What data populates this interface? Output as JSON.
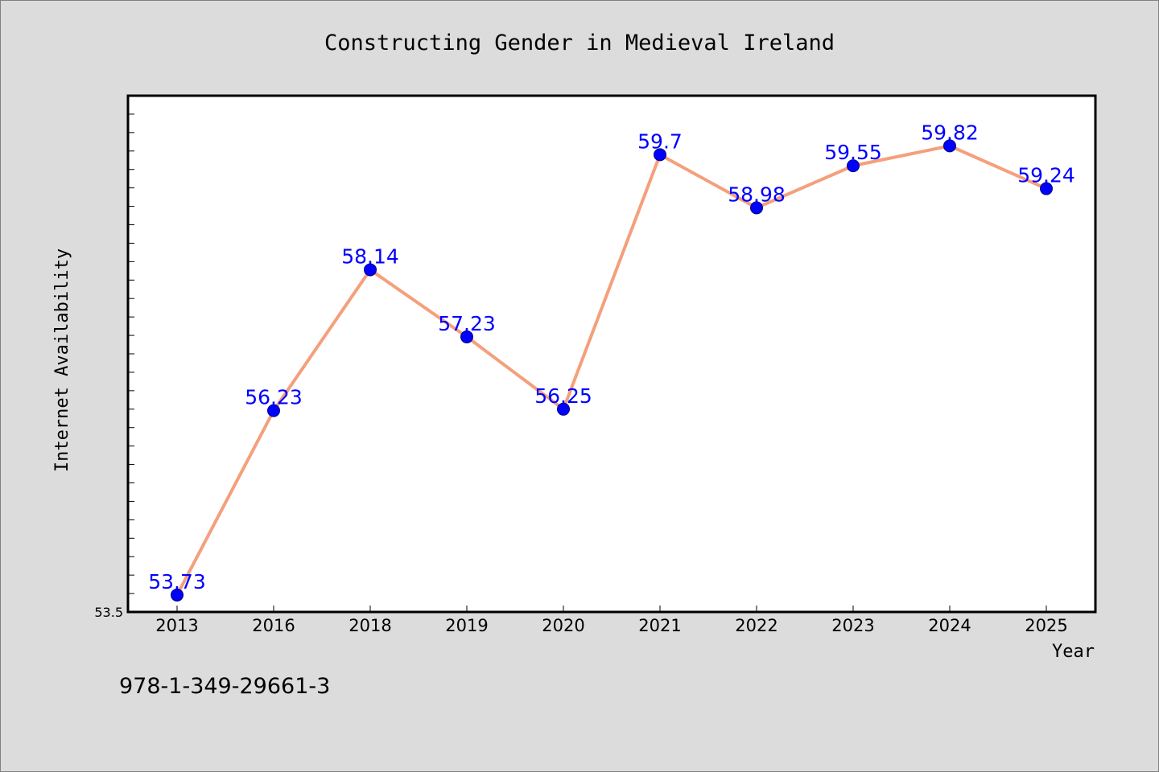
{
  "chart_data": {
    "type": "line",
    "title": "Constructing Gender in Medieval Ireland",
    "xlabel": "Year",
    "ylabel": "Internet Availability",
    "categories": [
      "2013",
      "2016",
      "2018",
      "2019",
      "2020",
      "2021",
      "2022",
      "2023",
      "2024",
      "2025"
    ],
    "series": [
      {
        "values": [
          53.73,
          56.23,
          58.14,
          57.23,
          56.25,
          59.7,
          58.98,
          59.55,
          59.82,
          59.24
        ]
      }
    ],
    "data_labels": [
      "53.73",
      "56.23",
      "58.14",
      "57.23",
      "56.25",
      "59.7",
      "58.98",
      "59.55",
      "59.82",
      "59.24"
    ],
    "ylim": [
      53.5,
      60.5
    ],
    "yticks_labeled": [
      "53.5"
    ],
    "grid": false,
    "legend": "none",
    "annotation": "978-1-349-29661-3",
    "colors": {
      "background": "#dcdcdc",
      "plot_background": "#ffffff",
      "line": "#f4a07c",
      "marker": "#0000ff",
      "data_label": "#0000ff"
    }
  }
}
